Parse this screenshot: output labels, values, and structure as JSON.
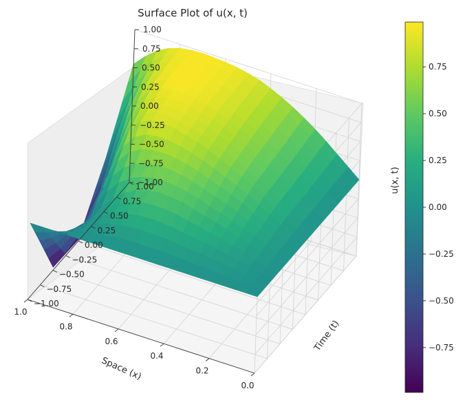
{
  "chart_data": {
    "type": "surface3d",
    "title": "Surface Plot of u(x, t)",
    "xlabel": "Space (x)",
    "ylabel": "Time (t)",
    "zlabel": "u(x, t)",
    "xlim": [
      0,
      1
    ],
    "ylim": [
      -1,
      1
    ],
    "zlim": [
      -1,
      1
    ],
    "x_ticks": [
      0.0,
      0.2,
      0.4,
      0.6,
      0.8,
      1.0
    ],
    "x_tick_labels": [
      "0.0",
      "0.2",
      "0.4",
      "0.6",
      "0.8",
      "1.0"
    ],
    "y_ticks": [
      -1.0,
      -0.75,
      -0.5,
      -0.25,
      0.0,
      0.25,
      0.5,
      0.75,
      1.0
    ],
    "y_tick_labels": [
      "−1.00",
      "−0.75",
      "−0.50",
      "−0.25",
      "0.00",
      "0.25",
      "0.50",
      "0.75",
      "1.00"
    ],
    "z_ticks": [
      -1.0,
      -0.75,
      -0.5,
      -0.25,
      0.0,
      0.25,
      0.5,
      0.75,
      1.0
    ],
    "z_tick_labels": [
      "−1.00",
      "−0.75",
      "−0.50",
      "−0.25",
      "0.00",
      "0.25",
      "0.50",
      "0.75",
      "1.00"
    ],
    "grid": true,
    "colormap": "viridis",
    "colorbar": {
      "range": [
        -0.99,
        0.99
      ],
      "ticks": [
        -0.75,
        -0.5,
        -0.25,
        0.0,
        0.25,
        0.5,
        0.75
      ],
      "tick_labels": [
        "−0.75",
        "−0.50",
        "−0.25",
        "0.00",
        "0.25",
        "0.50",
        "0.75"
      ]
    },
    "surface": {
      "x": [
        0.0,
        0.05,
        0.1,
        0.15,
        0.2,
        0.25,
        0.3,
        0.35,
        0.4,
        0.45,
        0.5,
        0.55,
        0.6,
        0.65,
        0.7,
        0.75,
        0.8,
        0.85,
        0.9,
        0.95,
        1.0
      ],
      "t": [
        -1.0,
        -0.5,
        0.0,
        0.5,
        1.0
      ],
      "u_at_t": {
        "-1.0": [
          0.0,
          0.0,
          0.0,
          0.0,
          0.0,
          0.0,
          0.0,
          0.0,
          0.0,
          0.0,
          0.0,
          0.0,
          0.0,
          0.0,
          0.0,
          0.0,
          0.0,
          0.0,
          0.0,
          0.0,
          0.0
        ],
        "-0.5": [
          0.0,
          0.05,
          0.1,
          0.16,
          0.21,
          0.26,
          0.3,
          0.34,
          0.38,
          0.42,
          0.44,
          0.45,
          0.43,
          0.38,
          0.3,
          0.18,
          0.02,
          -0.2,
          -0.46,
          -0.74,
          -0.96
        ],
        "0.0": [
          0.0,
          0.08,
          0.17,
          0.26,
          0.35,
          0.44,
          0.52,
          0.59,
          0.66,
          0.72,
          0.78,
          0.82,
          0.86,
          0.88,
          0.87,
          0.8,
          0.62,
          0.3,
          -0.2,
          -0.7,
          -0.98
        ],
        "0.5": [
          0.0,
          0.1,
          0.2,
          0.3,
          0.4,
          0.5,
          0.6,
          0.68,
          0.76,
          0.83,
          0.88,
          0.92,
          0.95,
          0.97,
          0.98,
          0.96,
          0.9,
          0.76,
          0.5,
          0.12,
          -0.3
        ],
        "1.0": [
          0.0,
          0.12,
          0.24,
          0.36,
          0.47,
          0.57,
          0.66,
          0.74,
          0.81,
          0.87,
          0.91,
          0.94,
          0.96,
          0.97,
          0.98,
          0.97,
          0.95,
          0.9,
          0.82,
          0.7,
          0.55
        ]
      }
    }
  }
}
